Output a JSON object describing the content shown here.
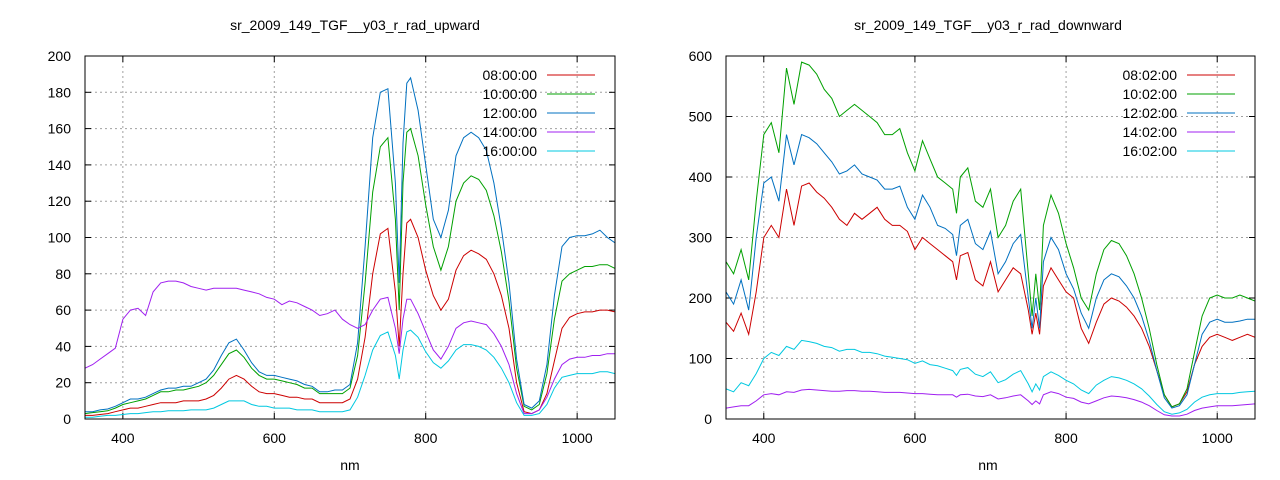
{
  "chart_data": [
    {
      "type": "line",
      "title": "sr_2009_149_TGF__y03_r_rad_upward",
      "xlabel": "nm",
      "ylabel": "",
      "xlim": [
        350,
        1050
      ],
      "ylim": [
        0,
        200
      ],
      "xticks": [
        400,
        600,
        800,
        1000
      ],
      "yticks": [
        0,
        20,
        40,
        60,
        80,
        100,
        120,
        140,
        160,
        180,
        200
      ],
      "grid": true,
      "legend_position": "top-right",
      "x": [
        350,
        360,
        370,
        380,
        390,
        400,
        410,
        420,
        430,
        440,
        450,
        460,
        470,
        480,
        490,
        500,
        510,
        520,
        530,
        540,
        550,
        560,
        570,
        580,
        590,
        600,
        610,
        620,
        630,
        640,
        650,
        660,
        670,
        680,
        690,
        700,
        710,
        720,
        730,
        740,
        750,
        760,
        765,
        770,
        775,
        780,
        790,
        800,
        810,
        820,
        830,
        840,
        850,
        860,
        870,
        880,
        890,
        900,
        910,
        920,
        930,
        940,
        950,
        960,
        970,
        980,
        990,
        1000,
        1010,
        1020,
        1030,
        1040,
        1050
      ],
      "series": [
        {
          "name": "08:00:00",
          "color": "#cc0000",
          "values": [
            2,
            2,
            2.5,
            3,
            4,
            5,
            6,
            6,
            7,
            8,
            9,
            9,
            9,
            10,
            10,
            10,
            11,
            13,
            17,
            22,
            24,
            22,
            18,
            15,
            14,
            14,
            13,
            12,
            12,
            11,
            11,
            9,
            9,
            9,
            9,
            11,
            22,
            45,
            80,
            102,
            105,
            70,
            40,
            80,
            108,
            110,
            100,
            82,
            68,
            60,
            66,
            82,
            90,
            93,
            91,
            88,
            80,
            68,
            50,
            20,
            4,
            3,
            5,
            14,
            32,
            50,
            56,
            58,
            59,
            59,
            60,
            60,
            59
          ]
        },
        {
          "name": "10:00:00",
          "color": "#00a000",
          "values": [
            3,
            3.5,
            4,
            4.5,
            6,
            8,
            9,
            10,
            11,
            13,
            15,
            15,
            16,
            16,
            17,
            18,
            20,
            24,
            30,
            36,
            38,
            34,
            28,
            24,
            22,
            22,
            21,
            20,
            19,
            17,
            17,
            14,
            14,
            14,
            14,
            17,
            35,
            75,
            125,
            150,
            155,
            110,
            60,
            130,
            158,
            160,
            145,
            118,
            95,
            82,
            95,
            120,
            130,
            134,
            132,
            126,
            112,
            92,
            65,
            28,
            7,
            5,
            8,
            25,
            55,
            76,
            80,
            82,
            84,
            84,
            85,
            85,
            83
          ]
        },
        {
          "name": "12:00:00",
          "color": "#0070c0",
          "values": [
            4,
            4,
            5,
            5.5,
            7,
            9,
            11,
            11,
            12,
            14,
            16,
            17,
            17,
            18,
            18,
            20,
            22,
            27,
            35,
            42,
            44,
            38,
            31,
            26,
            24,
            24,
            23,
            22,
            21,
            19,
            18,
            15,
            15,
            16,
            16,
            19,
            42,
            95,
            155,
            180,
            182,
            130,
            75,
            152,
            185,
            188,
            170,
            140,
            110,
            100,
            115,
            145,
            155,
            158,
            155,
            148,
            130,
            105,
            75,
            33,
            8,
            6,
            10,
            30,
            68,
            95,
            100,
            101,
            101,
            102,
            104,
            100,
            97
          ]
        },
        {
          "name": "14:00:00",
          "color": "#a020f0",
          "values": [
            28,
            30,
            33,
            36,
            39,
            55,
            60,
            61,
            57,
            70,
            75,
            76,
            76,
            75,
            73,
            72,
            71,
            72,
            72,
            72,
            72,
            71,
            70,
            69,
            67,
            66,
            63,
            65,
            64,
            62,
            60,
            57,
            58,
            60,
            55,
            52,
            50,
            52,
            60,
            66,
            67,
            50,
            36,
            55,
            66,
            66,
            58,
            48,
            38,
            33,
            40,
            50,
            53,
            54,
            53,
            52,
            47,
            40,
            30,
            14,
            3,
            3,
            5,
            12,
            22,
            30,
            33,
            34,
            34,
            35,
            35,
            36,
            36
          ]
        },
        {
          "name": "16:00:00",
          "color": "#00c8e0",
          "values": [
            1,
            1,
            1.5,
            2,
            2,
            2.5,
            3,
            3,
            3.5,
            4,
            4,
            4.5,
            4.5,
            4.5,
            5,
            5,
            5,
            6,
            8,
            10,
            10,
            10,
            8,
            7,
            7,
            6,
            6,
            6,
            5,
            5,
            5,
            4,
            4,
            4,
            4,
            5,
            12,
            24,
            38,
            46,
            48,
            35,
            22,
            38,
            48,
            49,
            45,
            37,
            31,
            28,
            32,
            38,
            41,
            41,
            40,
            38,
            34,
            28,
            20,
            9,
            2,
            2,
            3,
            8,
            17,
            23,
            24,
            25,
            25,
            25,
            26,
            26,
            25
          ]
        }
      ],
      "series_order_note": ""
    },
    {
      "type": "line",
      "title": "sr_2009_149_TGF__y03_r_rad_downward",
      "xlabel": "nm",
      "ylabel": "",
      "xlim": [
        350,
        1050
      ],
      "ylim": [
        0,
        600
      ],
      "xticks": [
        400,
        600,
        800,
        1000
      ],
      "yticks": [
        0,
        100,
        200,
        300,
        400,
        500,
        600
      ],
      "grid": true,
      "legend_position": "top-right",
      "x": [
        350,
        360,
        370,
        380,
        390,
        400,
        410,
        420,
        430,
        440,
        450,
        460,
        470,
        480,
        490,
        500,
        510,
        520,
        530,
        540,
        550,
        560,
        570,
        580,
        590,
        600,
        610,
        620,
        630,
        640,
        650,
        655,
        660,
        670,
        680,
        690,
        700,
        710,
        720,
        730,
        740,
        750,
        755,
        760,
        765,
        770,
        780,
        790,
        800,
        810,
        820,
        830,
        840,
        850,
        860,
        870,
        880,
        890,
        900,
        910,
        920,
        930,
        940,
        950,
        960,
        970,
        980,
        990,
        1000,
        1010,
        1020,
        1030,
        1040,
        1050
      ],
      "series": [
        {
          "name": "08:02:00",
          "color": "#cc0000",
          "values": [
            160,
            145,
            175,
            140,
            210,
            300,
            320,
            300,
            380,
            320,
            385,
            390,
            375,
            365,
            350,
            330,
            320,
            340,
            330,
            340,
            350,
            330,
            320,
            320,
            310,
            280,
            300,
            290,
            280,
            270,
            260,
            230,
            270,
            275,
            230,
            220,
            260,
            210,
            230,
            250,
            240,
            180,
            140,
            175,
            140,
            220,
            250,
            230,
            210,
            200,
            150,
            125,
            160,
            190,
            200,
            195,
            185,
            170,
            150,
            120,
            80,
            40,
            20,
            25,
            45,
            90,
            120,
            135,
            140,
            135,
            130,
            135,
            140,
            135
          ]
        },
        {
          "name": "10:02:00",
          "color": "#00a000",
          "values": [
            260,
            240,
            280,
            230,
            360,
            470,
            490,
            440,
            580,
            520,
            590,
            585,
            570,
            545,
            530,
            500,
            510,
            520,
            510,
            500,
            490,
            470,
            470,
            480,
            440,
            410,
            460,
            430,
            400,
            390,
            380,
            340,
            400,
            415,
            360,
            350,
            380,
            300,
            320,
            360,
            380,
            240,
            170,
            240,
            180,
            320,
            370,
            340,
            290,
            250,
            200,
            180,
            240,
            280,
            295,
            290,
            270,
            240,
            200,
            150,
            90,
            40,
            20,
            25,
            50,
            110,
            170,
            200,
            205,
            200,
            200,
            205,
            200,
            195
          ]
        },
        {
          "name": "12:02:00",
          "color": "#0070c0",
          "values": [
            210,
            190,
            230,
            180,
            300,
            390,
            400,
            360,
            470,
            420,
            470,
            465,
            455,
            440,
            425,
            405,
            410,
            420,
            405,
            400,
            395,
            380,
            380,
            385,
            350,
            330,
            370,
            350,
            320,
            315,
            305,
            270,
            320,
            330,
            290,
            280,
            310,
            240,
            260,
            290,
            305,
            200,
            150,
            200,
            150,
            260,
            300,
            280,
            240,
            215,
            175,
            150,
            200,
            230,
            240,
            235,
            220,
            200,
            170,
            130,
            80,
            35,
            18,
            22,
            40,
            90,
            140,
            160,
            165,
            160,
            160,
            162,
            165,
            165
          ]
        },
        {
          "name": "14:02:00",
          "color": "#a020f0",
          "values": [
            18,
            20,
            22,
            22,
            30,
            40,
            42,
            40,
            45,
            44,
            48,
            49,
            48,
            47,
            46,
            46,
            47,
            47,
            46,
            46,
            45,
            44,
            44,
            44,
            43,
            42,
            42,
            41,
            40,
            40,
            40,
            36,
            40,
            41,
            38,
            37,
            40,
            33,
            35,
            38,
            40,
            30,
            24,
            30,
            25,
            40,
            45,
            42,
            36,
            34,
            28,
            25,
            30,
            35,
            38,
            37,
            35,
            32,
            28,
            22,
            14,
            7,
            5,
            5,
            8,
            14,
            18,
            20,
            22,
            22,
            22,
            23,
            24,
            25
          ]
        },
        {
          "name": "16:02:00",
          "color": "#00c8e0",
          "values": [
            50,
            45,
            60,
            55,
            75,
            100,
            110,
            105,
            120,
            115,
            130,
            128,
            125,
            120,
            118,
            112,
            115,
            115,
            110,
            110,
            108,
            104,
            102,
            100,
            98,
            92,
            96,
            90,
            88,
            84,
            80,
            72,
            82,
            85,
            74,
            70,
            78,
            60,
            65,
            74,
            80,
            58,
            45,
            58,
            48,
            70,
            78,
            72,
            64,
            58,
            48,
            42,
            56,
            64,
            70,
            68,
            64,
            58,
            50,
            38,
            24,
            12,
            8,
            10,
            16,
            28,
            36,
            40,
            42,
            42,
            42,
            44,
            45,
            46
          ]
        }
      ]
    }
  ]
}
